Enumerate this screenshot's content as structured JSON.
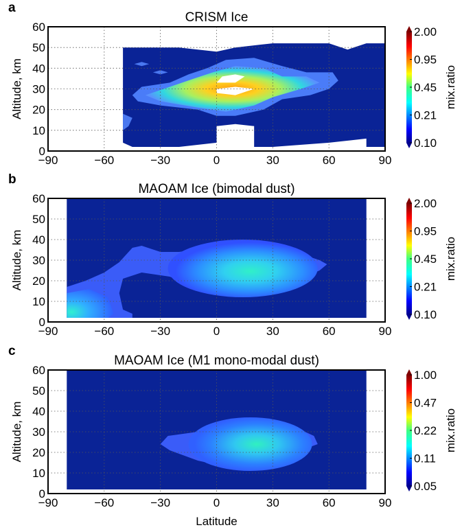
{
  "chart_data": [
    {
      "type": "heatmap",
      "panel_label": "a",
      "title": "CRISM Ice",
      "xlabel": "",
      "ylabel": "Altitude, km",
      "xlim": [
        -90,
        90
      ],
      "ylim": [
        0,
        60
      ],
      "xticks": [
        -90,
        -60,
        -30,
        0,
        30,
        60,
        90
      ],
      "yticks": [
        0,
        10,
        20,
        30,
        40,
        50,
        60
      ],
      "grid": true,
      "colorbar": {
        "label": "mix.ratio",
        "ticks": [
          "0.10",
          "0.21",
          "0.45",
          "0.95",
          "2.00"
        ],
        "extend": "both"
      },
      "data_extent": {
        "lat": [
          -50,
          90
        ],
        "alt": [
          2,
          52
        ]
      },
      "features": [
        {
          "desc": "main ice layer",
          "lat_range": [
            -45,
            65
          ],
          "alt_range": [
            20,
            40
          ],
          "peak_lat": -5,
          "peak_alt": 27,
          "peak_value": 0.95
        },
        {
          "desc": "white gaps (no data / above max)",
          "regions": [
            {
              "lat": [
                0,
                15
              ],
              "alt": [
                33,
                37
              ]
            },
            {
              "lat": [
                0,
                20
              ],
              "alt": [
                27,
                31
              ]
            },
            {
              "lat": [
                0,
                20
              ],
              "alt": [
                0,
                12
              ]
            }
          ]
        }
      ]
    },
    {
      "type": "heatmap",
      "panel_label": "b",
      "title": "MAOAM Ice (bimodal dust)",
      "xlabel": "",
      "ylabel": "Altitude, km",
      "xlim": [
        -90,
        90
      ],
      "ylim": [
        0,
        60
      ],
      "xticks": [
        -90,
        -60,
        -30,
        0,
        30,
        60,
        90
      ],
      "yticks": [
        0,
        10,
        20,
        30,
        40,
        50,
        60
      ],
      "grid": true,
      "colorbar": {
        "label": "mix.ratio",
        "ticks": [
          "0.10",
          "0.21",
          "0.45",
          "0.95",
          "2.00"
        ],
        "extend": "both"
      },
      "data_extent": {
        "lat": [
          -80,
          80
        ],
        "alt": [
          2,
          60
        ]
      },
      "features": [
        {
          "desc": "equatorial cloud belt",
          "lat_range": [
            -50,
            60
          ],
          "alt_range": [
            15,
            38
          ],
          "peak_lat": 15,
          "peak_alt": 26,
          "peak_value": 0.3
        },
        {
          "desc": "southern polar low cloud",
          "lat_range": [
            -80,
            -45
          ],
          "alt_range": [
            2,
            24
          ],
          "peak_lat": -80,
          "peak_alt": 5,
          "peak_value": 0.3
        }
      ]
    },
    {
      "type": "heatmap",
      "panel_label": "c",
      "title": "MAOAM Ice (M1 mono-modal dust)",
      "xlabel": "Latitude",
      "ylabel": "Altitude, km",
      "xlim": [
        -90,
        90
      ],
      "ylim": [
        0,
        60
      ],
      "xticks": [
        -90,
        -60,
        -30,
        0,
        30,
        60,
        90
      ],
      "yticks": [
        0,
        10,
        20,
        30,
        40,
        50,
        60
      ],
      "grid": true,
      "colorbar": {
        "label": "mix.ratio",
        "ticks": [
          "0.05",
          "0.11",
          "0.22",
          "0.47",
          "1.00"
        ],
        "extend": "both"
      },
      "data_extent": {
        "lat": [
          -80,
          80
        ],
        "alt": [
          2,
          60
        ]
      },
      "features": [
        {
          "desc": "equatorial cloud belt",
          "lat_range": [
            -30,
            55
          ],
          "alt_range": [
            14,
            34
          ],
          "peak_lat": 18,
          "peak_alt": 24,
          "peak_value": 0.18
        }
      ]
    }
  ]
}
